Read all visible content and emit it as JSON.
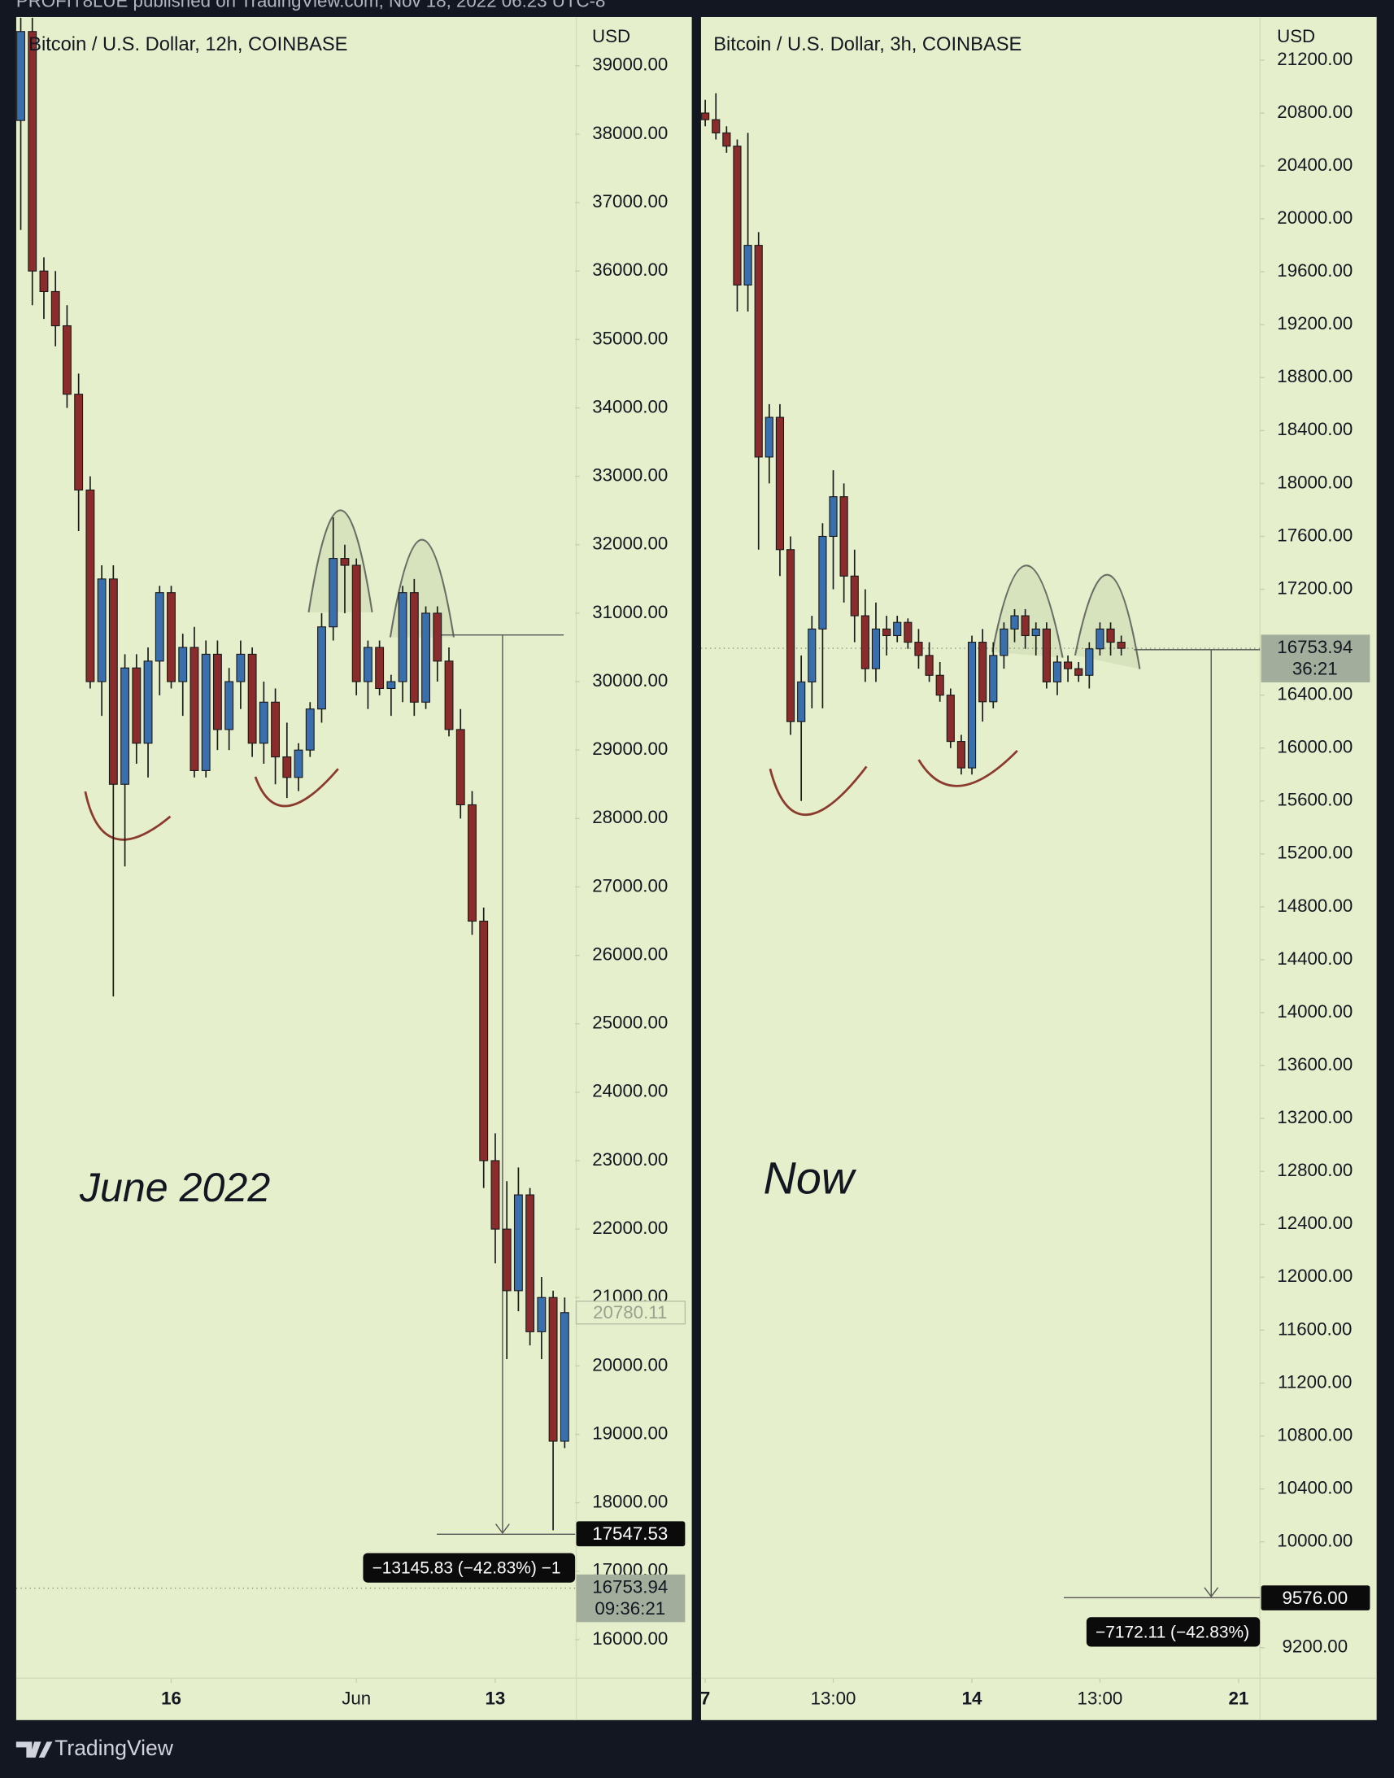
{
  "header": "PROFIT8LUE published on TradingView.com, Nov 18, 2022 06:23 UTC-8",
  "footer": "TradingView",
  "chart_data": [
    {
      "type": "candlestick",
      "title": "Bitcoin / U.S. Dollar, 12h, COINBASE",
      "y_axis_label": "USD",
      "annotation": "June 2022",
      "up_color": "#3a6fae",
      "down_color": "#8b2c2c",
      "xlim": [
        -0.4,
        47.9
      ],
      "xticks": [
        {
          "value": 13,
          "label": "16"
        },
        {
          "value": 29,
          "label": "Jun"
        },
        {
          "value": 41,
          "label": "13"
        }
      ],
      "ylim": [
        15437,
        39712
      ],
      "yticks": [
        {
          "value": 39000,
          "label": "39000.00"
        },
        {
          "value": 38000,
          "label": "38000.00"
        },
        {
          "value": 37000,
          "label": "37000.00"
        },
        {
          "value": 36000,
          "label": "36000.00"
        },
        {
          "value": 35000,
          "label": "35000.00"
        },
        {
          "value": 34000,
          "label": "34000.00"
        },
        {
          "value": 33000,
          "label": "33000.00"
        },
        {
          "value": 32000,
          "label": "32000.00"
        },
        {
          "value": 31000,
          "label": "31000.00"
        },
        {
          "value": 30000,
          "label": "30000.00"
        },
        {
          "value": 29000,
          "label": "29000.00"
        },
        {
          "value": 28000,
          "label": "28000.00"
        },
        {
          "value": 27000,
          "label": "27000.00"
        },
        {
          "value": 26000,
          "label": "26000.00"
        },
        {
          "value": 25000,
          "label": "25000.00"
        },
        {
          "value": 24000,
          "label": "24000.00"
        },
        {
          "value": 23000,
          "label": "23000.00"
        },
        {
          "value": 22000,
          "label": "22000.00"
        },
        {
          "value": 21000,
          "label": "21000.00"
        },
        {
          "value": 20000,
          "label": "20000.00"
        },
        {
          "value": 19000,
          "label": "19000.00"
        },
        {
          "value": 18000,
          "label": "18000.00"
        },
        {
          "value": 17000,
          "label": "17000.00"
        },
        {
          "value": 16000,
          "label": "16000.00"
        }
      ],
      "open": [
        38200,
        39500,
        36000,
        35700,
        35200,
        34200,
        32800,
        30000,
        31500,
        28500,
        30200,
        29100,
        30300,
        31300,
        30000,
        30500,
        28700,
        30400,
        29300,
        30000,
        30400,
        29100,
        29700,
        28900,
        28600,
        29000,
        29600,
        30800,
        31800,
        31700,
        30000,
        30500,
        29900,
        30000,
        31300,
        29700,
        31000,
        30300,
        29300,
        28200,
        26500,
        23000,
        22000,
        21100,
        22500,
        20500,
        21000,
        18900
      ],
      "high": [
        39700,
        39700,
        36200,
        36000,
        35500,
        34500,
        33000,
        31700,
        31700,
        30400,
        30400,
        30500,
        31400,
        31400,
        30700,
        30800,
        30600,
        30600,
        30200,
        30600,
        30500,
        30000,
        29900,
        29400,
        29100,
        29700,
        31000,
        32400,
        32000,
        31800,
        30600,
        30600,
        30100,
        31400,
        31500,
        31100,
        31100,
        30500,
        29600,
        28400,
        26700,
        23400,
        22700,
        22900,
        22600,
        21300,
        21100,
        21000
      ],
      "low": [
        36600,
        35500,
        35300,
        34900,
        34000,
        32200,
        29900,
        29500,
        25400,
        27300,
        28800,
        28600,
        29800,
        29900,
        29500,
        28600,
        28600,
        29000,
        29000,
        29600,
        28900,
        28800,
        28500,
        28300,
        28400,
        28900,
        29400,
        30600,
        31000,
        29800,
        29600,
        29800,
        29500,
        29700,
        29500,
        29600,
        30000,
        29200,
        28000,
        26300,
        22600,
        21500,
        20100,
        20800,
        20300,
        20100,
        17600,
        18800
      ],
      "close": [
        39500,
        36000,
        35700,
        35200,
        34200,
        32800,
        30000,
        31500,
        28500,
        30200,
        29100,
        30300,
        31300,
        30000,
        30500,
        28700,
        30400,
        29300,
        30000,
        30400,
        29100,
        29700,
        28900,
        28600,
        29000,
        29600,
        30800,
        31800,
        31700,
        30000,
        30500,
        29900,
        30000,
        31300,
        29700,
        31000,
        30300,
        29300,
        28200,
        26500,
        23000,
        22000,
        21100,
        22500,
        20500,
        21000,
        18900,
        20780.11
      ],
      "crosshair_price": 20780.11,
      "target_price": 17547.53,
      "measure_label": "−13145.83 (−42.83%) −1",
      "last_price": 16753.94,
      "countdown": "09:36:21"
    },
    {
      "type": "candlestick",
      "title": "Bitcoin / U.S. Dollar, 3h, COINBASE",
      "y_axis_label": "USD",
      "annotation": "Now",
      "up_color": "#3a6fae",
      "down_color": "#8b2c2c",
      "xlim": [
        -0.4,
        52
      ],
      "xticks": [
        {
          "value": 0,
          "label": "7"
        },
        {
          "value": 12,
          "label": "13:00"
        },
        {
          "value": 25,
          "label": "14"
        },
        {
          "value": 37,
          "label": "13:00"
        },
        {
          "value": 50,
          "label": "21"
        }
      ],
      "ylim": [
        8969,
        21526
      ],
      "yticks": [
        {
          "value": 21200,
          "label": "21200.00"
        },
        {
          "value": 20800,
          "label": "20800.00"
        },
        {
          "value": 20400,
          "label": "20400.00"
        },
        {
          "value": 20000,
          "label": "20000.00"
        },
        {
          "value": 19600,
          "label": "19600.00"
        },
        {
          "value": 19200,
          "label": "19200.00"
        },
        {
          "value": 18800,
          "label": "18800.00"
        },
        {
          "value": 18400,
          "label": "18400.00"
        },
        {
          "value": 18000,
          "label": "18000.00"
        },
        {
          "value": 17600,
          "label": "17600.00"
        },
        {
          "value": 17200,
          "label": "17200.00"
        },
        {
          "value": 16400,
          "label": "16400.00"
        },
        {
          "value": 16000,
          "label": "16000.00"
        },
        {
          "value": 15600,
          "label": "15600.00"
        },
        {
          "value": 15200,
          "label": "15200.00"
        },
        {
          "value": 14800,
          "label": "14800.00"
        },
        {
          "value": 14400,
          "label": "14400.00"
        },
        {
          "value": 14000,
          "label": "14000.00"
        },
        {
          "value": 13600,
          "label": "13600.00"
        },
        {
          "value": 13200,
          "label": "13200.00"
        },
        {
          "value": 12800,
          "label": "12800.00"
        },
        {
          "value": 12400,
          "label": "12400.00"
        },
        {
          "value": 12000,
          "label": "12000.00"
        },
        {
          "value": 11600,
          "label": "11600.00"
        },
        {
          "value": 11200,
          "label": "11200.00"
        },
        {
          "value": 10800,
          "label": "10800.00"
        },
        {
          "value": 10400,
          "label": "10400.00"
        },
        {
          "value": 10000,
          "label": "10000.00"
        },
        {
          "value": 9200,
          "label": "9200.00"
        }
      ],
      "open": [
        20800,
        20750,
        20650,
        20550,
        19500,
        19800,
        18200,
        18500,
        17500,
        16200,
        16500,
        16900,
        17600,
        17900,
        17300,
        17000,
        16600,
        16900,
        16850,
        16950,
        16800,
        16700,
        16550,
        16400,
        16050,
        15850,
        16800,
        16350,
        16700,
        16900,
        17000,
        16850,
        16900,
        16500,
        16650,
        16600,
        16550,
        16750,
        16900,
        16800
      ],
      "high": [
        20900,
        20950,
        20700,
        20600,
        20650,
        19900,
        18600,
        18600,
        17600,
        16700,
        17000,
        17700,
        18100,
        18000,
        17500,
        17200,
        17100,
        17000,
        17000,
        16980,
        16900,
        16800,
        16650,
        16450,
        16100,
        16850,
        16900,
        16800,
        16950,
        17050,
        17050,
        16950,
        16950,
        16700,
        16700,
        16650,
        16800,
        16950,
        16950,
        16850
      ],
      "low": [
        20700,
        20600,
        20500,
        19300,
        19300,
        17500,
        18000,
        17300,
        16100,
        15600,
        16300,
        16300,
        17200,
        17100,
        16800,
        16500,
        16500,
        16700,
        16800,
        16750,
        16600,
        16500,
        16350,
        16000,
        15800,
        15800,
        16200,
        16300,
        16600,
        16800,
        16750,
        16700,
        16450,
        16400,
        16500,
        16500,
        16450,
        16700,
        16700,
        16700
      ],
      "close": [
        20750,
        20650,
        20550,
        19500,
        19800,
        18200,
        18500,
        17500,
        16200,
        16500,
        16900,
        17600,
        17900,
        17300,
        17000,
        16600,
        16900,
        16850,
        16950,
        16800,
        16700,
        16550,
        16400,
        16050,
        15850,
        16800,
        16350,
        16700,
        16900,
        17000,
        16850,
        16900,
        16500,
        16650,
        16600,
        16550,
        16750,
        16900,
        16800,
        16753.94
      ],
      "last_price": 16753.94,
      "countdown": "36:21",
      "target_price": {
        "value": 9576,
        "label": "9576.00"
      },
      "measure_label": "−7172.11 (−42.83%)"
    }
  ]
}
